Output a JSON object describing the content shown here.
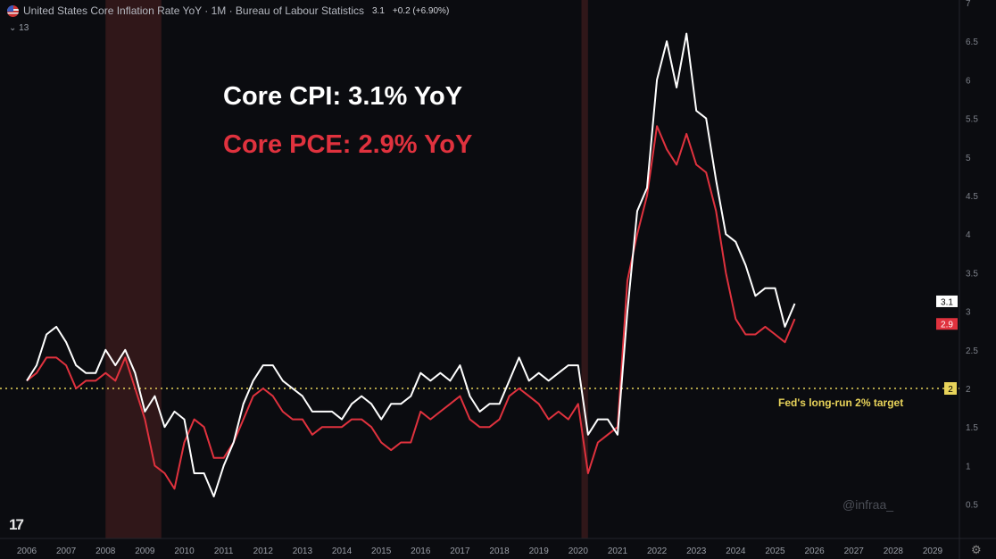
{
  "header": {
    "title": "United States Core Inflation Rate YoY · 1M · Bureau of Labour Statistics",
    "last": "3.1",
    "change": "+0.2 (+6.90%)",
    "indicators_count": "13",
    "flag_icon": "us-flag-icon"
  },
  "annotations": {
    "cpi": "Core CPI: 3.1% YoY",
    "pce": "Core PCE: 2.9% YoY",
    "target": "Fed's long-run 2% target"
  },
  "watermark": "@infraa_",
  "logo": "TV",
  "colors": {
    "background": "#0b0c10",
    "cpi": "#ffffff",
    "pce": "#e0323e",
    "target": "#e8d35a",
    "recession": "#3a1a1c"
  },
  "chart_data": {
    "type": "line",
    "title": "",
    "ylim": [
      0.3,
      7
    ],
    "y_ticks": [
      0.5,
      1,
      1.5,
      2,
      2.5,
      3,
      3.5,
      4,
      4.5,
      5,
      5.5,
      6,
      6.5,
      7
    ],
    "x_ticks": [
      "2006",
      "2007",
      "2008",
      "2009",
      "2010",
      "2011",
      "2012",
      "2013",
      "2014",
      "2015",
      "2016",
      "2017",
      "2018",
      "2019",
      "2020",
      "2021",
      "2022",
      "2023",
      "2024",
      "2025",
      "2026",
      "2027",
      "2028",
      "2029"
    ],
    "grid": false,
    "recessions": [
      [
        "2008-01",
        "2009-06"
      ],
      [
        "2020-02",
        "2020-04"
      ]
    ],
    "reference_line": {
      "value": 2,
      "label": "2"
    },
    "last_labels": [
      {
        "series": "Core CPI",
        "value": "3.1"
      },
      {
        "series": "Core PCE",
        "value": "2.9"
      }
    ],
    "x": [
      "2006-01",
      "2006-04",
      "2006-07",
      "2006-10",
      "2007-01",
      "2007-04",
      "2007-07",
      "2007-10",
      "2008-01",
      "2008-04",
      "2008-07",
      "2008-10",
      "2009-01",
      "2009-04",
      "2009-07",
      "2009-10",
      "2010-01",
      "2010-04",
      "2010-07",
      "2010-10",
      "2011-01",
      "2011-04",
      "2011-07",
      "2011-10",
      "2012-01",
      "2012-04",
      "2012-07",
      "2012-10",
      "2013-01",
      "2013-04",
      "2013-07",
      "2013-10",
      "2014-01",
      "2014-04",
      "2014-07",
      "2014-10",
      "2015-01",
      "2015-04",
      "2015-07",
      "2015-10",
      "2016-01",
      "2016-04",
      "2016-07",
      "2016-10",
      "2017-01",
      "2017-04",
      "2017-07",
      "2017-10",
      "2018-01",
      "2018-04",
      "2018-07",
      "2018-10",
      "2019-01",
      "2019-04",
      "2019-07",
      "2019-10",
      "2020-01",
      "2020-04",
      "2020-07",
      "2020-10",
      "2021-01",
      "2021-04",
      "2021-07",
      "2021-10",
      "2022-01",
      "2022-04",
      "2022-07",
      "2022-10",
      "2023-01",
      "2023-04",
      "2023-07",
      "2023-10",
      "2024-01",
      "2024-04",
      "2024-07",
      "2024-10",
      "2025-01",
      "2025-04",
      "2025-07"
    ],
    "series": [
      {
        "name": "Core CPI",
        "color": "#ffffff",
        "values": [
          2.1,
          2.3,
          2.7,
          2.8,
          2.6,
          2.3,
          2.2,
          2.2,
          2.5,
          2.3,
          2.5,
          2.2,
          1.7,
          1.9,
          1.5,
          1.7,
          1.6,
          0.9,
          0.9,
          0.6,
          1.0,
          1.3,
          1.8,
          2.1,
          2.3,
          2.3,
          2.1,
          2.0,
          1.9,
          1.7,
          1.7,
          1.7,
          1.6,
          1.8,
          1.9,
          1.8,
          1.6,
          1.8,
          1.8,
          1.9,
          2.2,
          2.1,
          2.2,
          2.1,
          2.3,
          1.9,
          1.7,
          1.8,
          1.8,
          2.1,
          2.4,
          2.1,
          2.2,
          2.1,
          2.2,
          2.3,
          2.3,
          1.4,
          1.6,
          1.6,
          1.4,
          3.0,
          4.3,
          4.6,
          6.0,
          6.5,
          5.9,
          6.6,
          5.6,
          5.5,
          4.7,
          4.0,
          3.9,
          3.6,
          3.2,
          3.3,
          3.3,
          2.8,
          3.1
        ]
      },
      {
        "name": "Core PCE",
        "color": "#e0323e",
        "values": [
          2.1,
          2.2,
          2.4,
          2.4,
          2.3,
          2.0,
          2.1,
          2.1,
          2.2,
          2.1,
          2.4,
          2.0,
          1.6,
          1.0,
          0.9,
          0.7,
          1.3,
          1.6,
          1.5,
          1.1,
          1.1,
          1.3,
          1.6,
          1.9,
          2.0,
          1.9,
          1.7,
          1.6,
          1.6,
          1.4,
          1.5,
          1.5,
          1.5,
          1.6,
          1.6,
          1.5,
          1.3,
          1.2,
          1.3,
          1.3,
          1.7,
          1.6,
          1.7,
          1.8,
          1.9,
          1.6,
          1.5,
          1.5,
          1.6,
          1.9,
          2.0,
          1.9,
          1.8,
          1.6,
          1.7,
          1.6,
          1.8,
          0.9,
          1.3,
          1.4,
          1.5,
          3.4,
          4.0,
          4.5,
          5.4,
          5.1,
          4.9,
          5.3,
          4.9,
          4.8,
          4.3,
          3.5,
          2.9,
          2.7,
          2.7,
          2.8,
          2.7,
          2.6,
          2.9
        ]
      }
    ]
  }
}
